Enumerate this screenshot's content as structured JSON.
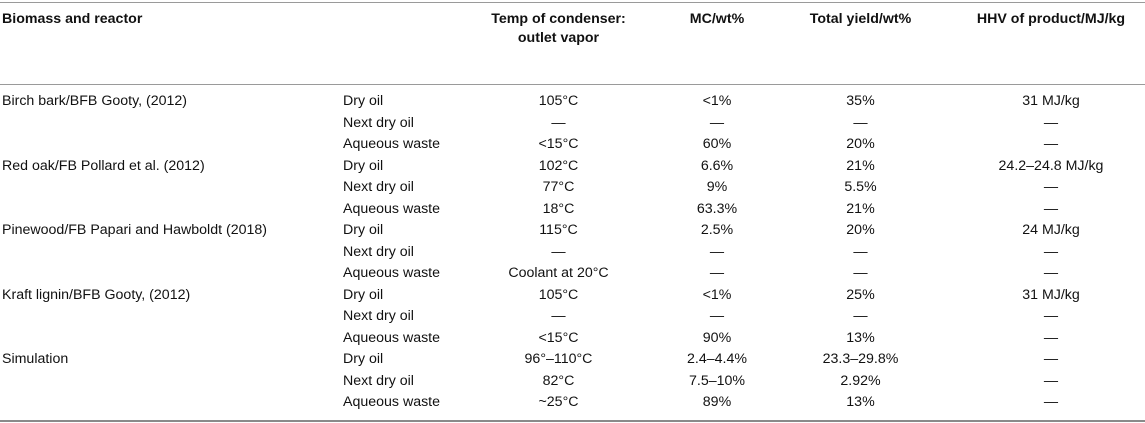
{
  "header": {
    "biomass_reactor": "Biomass and reactor",
    "temp_condenser": "Temp of condenser: outlet vapor",
    "mc": "MC/wt%",
    "total_yield": "Total yield/wt%",
    "hhv": "HHV of product/MJ/kg"
  },
  "rows": [
    {
      "biomass": "Birch bark/BFB Gooty, (2012)",
      "stream": "Dry oil",
      "temp": "105°C",
      "mc": "<1%",
      "yield": "35%",
      "hhv": "31 MJ/kg"
    },
    {
      "biomass": "",
      "stream": "Next dry oil",
      "temp": "—",
      "mc": "—",
      "yield": "—",
      "hhv": "—"
    },
    {
      "biomass": "",
      "stream": "Aqueous waste",
      "temp": "<15°C",
      "mc": "60%",
      "yield": "20%",
      "hhv": "—"
    },
    {
      "biomass": "Red oak/FB Pollard et al. (2012)",
      "stream": "Dry oil",
      "temp": "102°C",
      "mc": "6.6%",
      "yield": "21%",
      "hhv": "24.2–24.8 MJ/kg"
    },
    {
      "biomass": "",
      "stream": "Next dry oil",
      "temp": "77°C",
      "mc": "9%",
      "yield": "5.5%",
      "hhv": "—"
    },
    {
      "biomass": "",
      "stream": "Aqueous waste",
      "temp": "18°C",
      "mc": "63.3%",
      "yield": "21%",
      "hhv": "—"
    },
    {
      "biomass": "Pinewood/FB Papari and Hawboldt (2018)",
      "stream": "Dry oil",
      "temp": "115°C",
      "mc": "2.5%",
      "yield": "20%",
      "hhv": "24 MJ/kg"
    },
    {
      "biomass": "",
      "stream": "Next dry oil",
      "temp": "—",
      "mc": "—",
      "yield": "—",
      "hhv": "—"
    },
    {
      "biomass": "",
      "stream": "Aqueous waste",
      "temp": "Coolant at 20°C",
      "mc": "—",
      "yield": "—",
      "hhv": "—"
    },
    {
      "biomass": "Kraft lignin/BFB Gooty, (2012)",
      "stream": "Dry oil",
      "temp": "105°C",
      "mc": "<1%",
      "yield": "25%",
      "hhv": "31 MJ/kg"
    },
    {
      "biomass": "",
      "stream": "Next dry oil",
      "temp": "—",
      "mc": "—",
      "yield": "—",
      "hhv": "—"
    },
    {
      "biomass": "",
      "stream": "Aqueous waste",
      "temp": "<15°C",
      "mc": "90%",
      "yield": "13%",
      "hhv": "—"
    },
    {
      "biomass": "Simulation",
      "stream": "Dry oil",
      "temp": "96°–110°C",
      "mc": "2.4–4.4%",
      "yield": "23.3–29.8%",
      "hhv": "—"
    },
    {
      "biomass": "",
      "stream": "Next dry oil",
      "temp": "82°C",
      "mc": "7.5–10%",
      "yield": "2.92%",
      "hhv": "—"
    },
    {
      "biomass": "",
      "stream": "Aqueous waste",
      "temp": "~25°C",
      "mc": "89%",
      "yield": "13%",
      "hhv": "—"
    }
  ]
}
